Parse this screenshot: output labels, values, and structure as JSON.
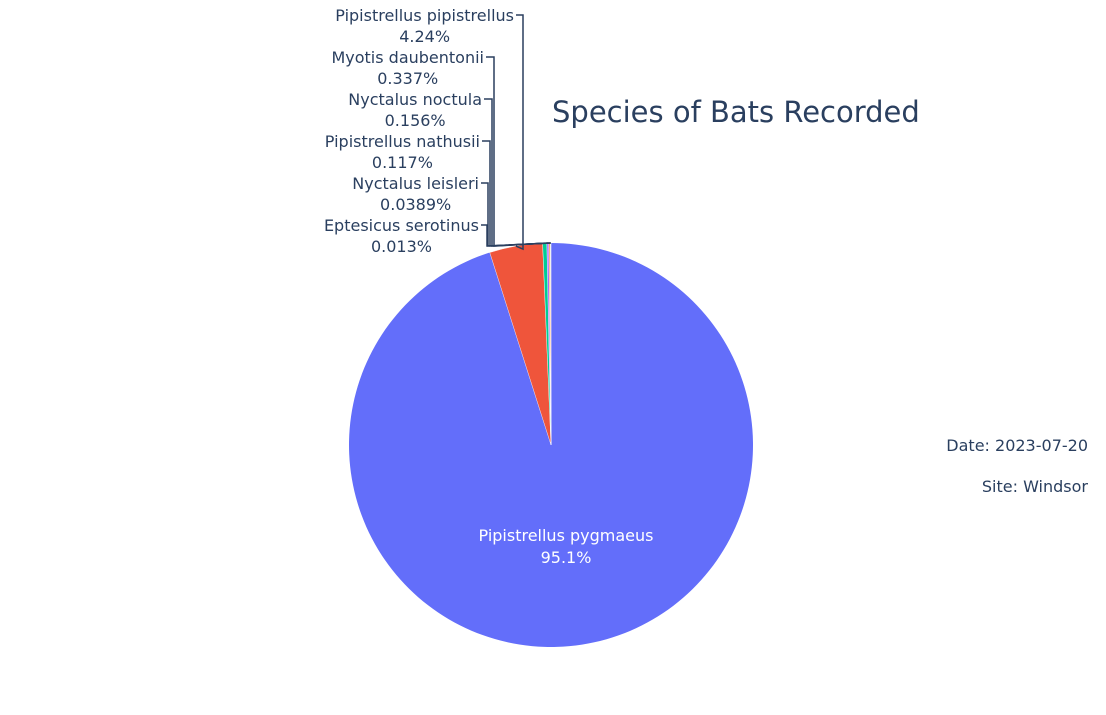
{
  "chart_data": {
    "type": "pie",
    "title": "Species of Bats Recorded",
    "slices": [
      {
        "label": "Pipistrellus pygmaeus",
        "percent_text": "95.1%",
        "value": 95.1,
        "color": "#636efa"
      },
      {
        "label": "Pipistrellus pipistrellus",
        "percent_text": "4.24%",
        "value": 4.24,
        "color": "#ef553b"
      },
      {
        "label": "Myotis daubentonii",
        "percent_text": "0.337%",
        "value": 0.337,
        "color": "#00cc96"
      },
      {
        "label": "Nyctalus noctula",
        "percent_text": "0.156%",
        "value": 0.156,
        "color": "#ab63fa"
      },
      {
        "label": "Pipistrellus nathusii",
        "percent_text": "0.117%",
        "value": 0.117,
        "color": "#ffa15a"
      },
      {
        "label": "Nyctalus leisleri",
        "percent_text": "0.0389%",
        "value": 0.0389,
        "color": "#19d3f3"
      },
      {
        "label": "Eptesicus serotinus",
        "percent_text": "0.013%",
        "value": 0.013,
        "color": "#ff6692"
      }
    ],
    "direction": "clockwise",
    "start": "top",
    "legend": "none"
  },
  "annotations": {
    "date": "Date: 2023-07-20",
    "site": "Site: Windsor"
  }
}
